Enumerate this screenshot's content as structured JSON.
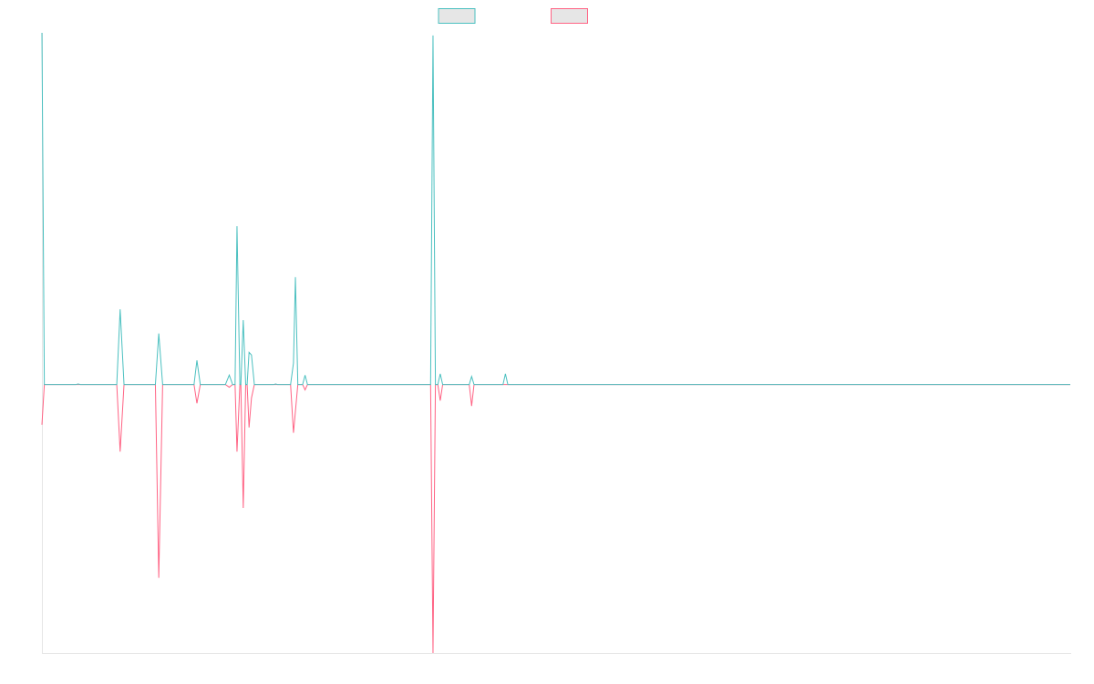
{
  "chart_data": {
    "type": "line",
    "title": "",
    "xlabel": "",
    "ylabel": "",
    "legend": "top-center",
    "grid": false,
    "x_range": [
      0,
      213
    ],
    "ylim": [
      -100,
      131
    ],
    "colors": {
      "series_a": "#4bc0c0",
      "series_b": "#ff6384",
      "legend_fill": "#e6e6e6",
      "axis": "#e6e6e6"
    },
    "series": [
      {
        "color": "#4bc0c0",
        "points": [
          [
            0,
            131
          ],
          [
            0.5,
            0
          ],
          [
            7,
            0
          ],
          [
            7.5,
            0.2
          ],
          [
            8,
            0
          ],
          [
            15.5,
            0
          ],
          [
            16.2,
            28
          ],
          [
            17,
            0
          ],
          [
            23.5,
            0
          ],
          [
            24.2,
            19
          ],
          [
            25,
            0
          ],
          [
            31.5,
            0
          ],
          [
            32.1,
            9
          ],
          [
            32.8,
            0
          ],
          [
            38,
            0
          ],
          [
            38.8,
            3.5
          ],
          [
            39.5,
            0
          ],
          [
            40,
            0
          ],
          [
            40.4,
            59
          ],
          [
            41,
            0
          ],
          [
            41.2,
            0
          ],
          [
            41.7,
            24
          ],
          [
            42.2,
            0
          ],
          [
            42.5,
            0
          ],
          [
            42.9,
            12
          ],
          [
            43.4,
            11
          ],
          [
            44,
            0
          ],
          [
            48,
            0
          ],
          [
            48.4,
            0.2
          ],
          [
            48.8,
            0
          ],
          [
            51.5,
            0
          ],
          [
            52.1,
            8
          ],
          [
            52.5,
            40
          ],
          [
            53,
            0
          ],
          [
            54,
            0
          ],
          [
            54.5,
            3.5
          ],
          [
            55,
            0
          ],
          [
            80.5,
            0
          ],
          [
            81,
            130
          ],
          [
            81.5,
            0
          ],
          [
            82,
            0
          ],
          [
            82.5,
            4
          ],
          [
            83,
            0
          ],
          [
            88.5,
            0
          ],
          [
            89,
            3
          ],
          [
            89.5,
            0
          ],
          [
            95.5,
            0
          ],
          [
            96,
            4
          ],
          [
            96.5,
            0
          ],
          [
            213,
            0
          ]
        ]
      },
      {
        "color": "#ff6384",
        "points": [
          [
            0,
            -15
          ],
          [
            0.5,
            0
          ],
          [
            15.5,
            0
          ],
          [
            16.2,
            -25
          ],
          [
            17,
            0
          ],
          [
            23.5,
            0
          ],
          [
            24.2,
            -72
          ],
          [
            25,
            0
          ],
          [
            31.5,
            0
          ],
          [
            32.1,
            -7
          ],
          [
            32.8,
            0
          ],
          [
            38,
            0
          ],
          [
            38.8,
            -1
          ],
          [
            39.5,
            0
          ],
          [
            40,
            0
          ],
          [
            40.4,
            -25
          ],
          [
            41,
            0
          ],
          [
            41.2,
            0
          ],
          [
            41.7,
            -46
          ],
          [
            42.2,
            0
          ],
          [
            42.5,
            0
          ],
          [
            42.9,
            -16
          ],
          [
            43.4,
            -5
          ],
          [
            44,
            0
          ],
          [
            51.5,
            0
          ],
          [
            52.1,
            -18
          ],
          [
            53,
            0
          ],
          [
            54,
            0
          ],
          [
            54.5,
            -2
          ],
          [
            55,
            0
          ],
          [
            80.5,
            0
          ],
          [
            81,
            -100
          ],
          [
            81.5,
            0
          ],
          [
            82,
            0
          ],
          [
            82.5,
            -6
          ],
          [
            83,
            0
          ],
          [
            88.5,
            0
          ],
          [
            89,
            -8
          ],
          [
            89.5,
            0
          ],
          [
            213,
            0
          ]
        ]
      }
    ]
  }
}
